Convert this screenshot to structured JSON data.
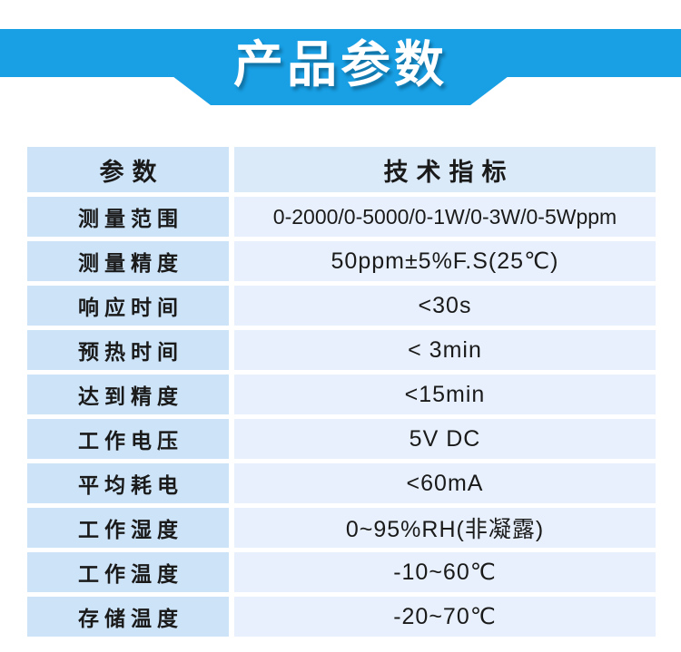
{
  "banner": {
    "title": "产品参数"
  },
  "colors": {
    "banner_blue": "#189fe4",
    "param_cell_bg": "#cde3f8",
    "value_cell_bg": "#e7f0fc",
    "value_header_bg": "#dbeaf9",
    "text_dark": "#1a1a1a",
    "title_text": "#ffffff"
  },
  "table": {
    "header": {
      "param": "参数",
      "value": "技术指标"
    },
    "rows": [
      {
        "param": "测量范围",
        "value": "0-2000/0-5000/0-1W/0-3W/0-5Wppm"
      },
      {
        "param": "测量精度",
        "value": "50ppm±5%F.S(25℃)"
      },
      {
        "param": "响应时间",
        "value": "<30s"
      },
      {
        "param": "预热时间",
        "value": "< 3min"
      },
      {
        "param": "达到精度",
        "value": "<15min"
      },
      {
        "param": "工作电压",
        "value": "5V DC"
      },
      {
        "param": "平均耗电",
        "value": "<60mA"
      },
      {
        "param": "工作湿度",
        "value": "0~95%RH(非凝露)"
      },
      {
        "param": "工作温度",
        "value": "-10~60℃"
      },
      {
        "param": "存储温度",
        "value": "-20~70℃"
      }
    ]
  }
}
